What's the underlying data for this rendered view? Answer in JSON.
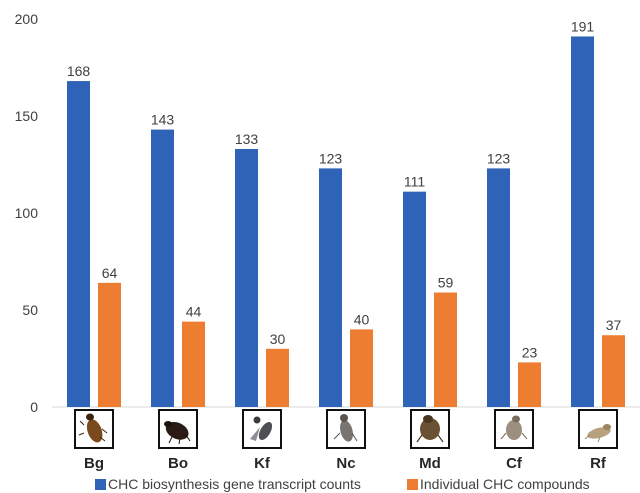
{
  "chart_data": {
    "type": "bar",
    "categories": [
      "Bg",
      "Bo",
      "Kf",
      "Nc",
      "Md",
      "Cf",
      "Rf"
    ],
    "series": [
      {
        "name": "CHC biosynthesis gene transcript counts",
        "color": "#2E63B8",
        "values": [
          168,
          143,
          133,
          123,
          111,
          123,
          191
        ]
      },
      {
        "name": "Individual CHC compounds",
        "color": "#ED7D31",
        "values": [
          64,
          44,
          30,
          40,
          59,
          23,
          37
        ]
      }
    ],
    "yticks": [
      0,
      50,
      100,
      150,
      200
    ],
    "ylim": [
      0,
      200
    ],
    "grid": false,
    "legend": "bottom",
    "category_icons": [
      "insect-bg-icon",
      "insect-bo-icon",
      "insect-kf-icon",
      "insect-nc-icon",
      "insect-md-icon",
      "insect-cf-icon",
      "insect-rf-icon"
    ]
  }
}
